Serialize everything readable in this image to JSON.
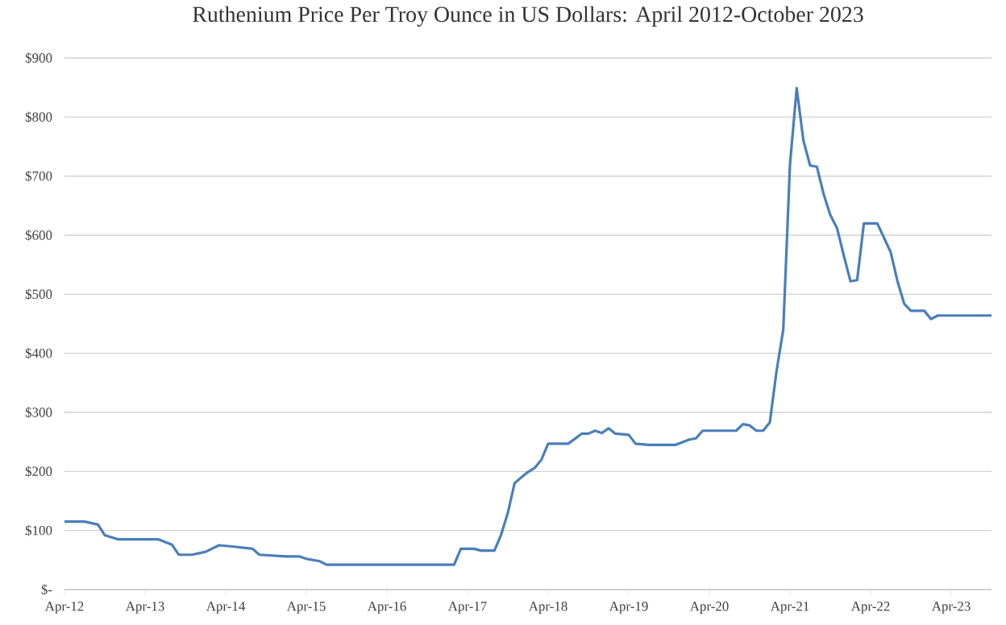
{
  "chart_data": {
    "type": "line",
    "title": "Ruthenium Price Per Troy Ounce in US Dollars: April 2012-October 2023",
    "x": [
      "2012-04",
      "2012-07",
      "2012-09",
      "2012-10",
      "2012-12",
      "2013-06",
      "2013-08",
      "2013-09",
      "2013-11",
      "2014-01",
      "2014-03",
      "2014-05",
      "2014-08",
      "2014-09",
      "2015-01",
      "2015-03",
      "2015-04",
      "2015-06",
      "2015-07",
      "2017-02",
      "2017-03",
      "2017-05",
      "2017-06",
      "2017-08",
      "2017-09",
      "2017-10",
      "2017-11",
      "2017-12",
      "2018-01",
      "2018-02",
      "2018-03",
      "2018-04",
      "2018-07",
      "2018-09",
      "2018-10",
      "2018-11",
      "2018-12",
      "2019-01",
      "2019-02",
      "2019-04",
      "2019-05",
      "2019-07",
      "2019-11",
      "2020-01",
      "2020-02",
      "2020-03",
      "2020-08",
      "2020-09",
      "2020-10",
      "2020-11",
      "2020-12",
      "2021-01",
      "2021-02",
      "2021-03",
      "2021-04",
      "2021-05",
      "2021-06",
      "2021-07",
      "2021-08",
      "2021-09",
      "2021-10",
      "2021-11",
      "2021-12",
      "2022-01",
      "2022-02",
      "2022-03",
      "2022-05",
      "2022-07",
      "2022-08",
      "2022-09",
      "2022-10",
      "2022-12",
      "2023-01",
      "2023-02",
      "2023-10"
    ],
    "series": [
      {
        "color": "#4a7ebb",
        "values": [
          115,
          115,
          110,
          92,
          85,
          85,
          76,
          59,
          59,
          64,
          75,
          73,
          69,
          59,
          56,
          56,
          52,
          48,
          42,
          42,
          69,
          69,
          66,
          66,
          93,
          130,
          180,
          190,
          199,
          206,
          220,
          247,
          247,
          264,
          264,
          269,
          265,
          273,
          264,
          262,
          247,
          245,
          245,
          254,
          256,
          269,
          269,
          280,
          278,
          269,
          269,
          283,
          370,
          440,
          720,
          849,
          760,
          718,
          716,
          670,
          634,
          612,
          566,
          522,
          524,
          620,
          620,
          571,
          522,
          484,
          472,
          472,
          458,
          464,
          464
        ]
      }
    ],
    "xlim": [
      "2012-04",
      "2023-10"
    ],
    "xticks": [
      {
        "value": "2012-04",
        "label": "Apr-12"
      },
      {
        "value": "2013-04",
        "label": "Apr-13"
      },
      {
        "value": "2014-04",
        "label": "Apr-14"
      },
      {
        "value": "2015-04",
        "label": "Apr-15"
      },
      {
        "value": "2016-04",
        "label": "Apr-16"
      },
      {
        "value": "2017-04",
        "label": "Apr-17"
      },
      {
        "value": "2018-04",
        "label": "Apr-18"
      },
      {
        "value": "2019-04",
        "label": "Apr-19"
      },
      {
        "value": "2020-04",
        "label": "Apr-20"
      },
      {
        "value": "2021-04",
        "label": "Apr-21"
      },
      {
        "value": "2022-04",
        "label": "Apr-22"
      },
      {
        "value": "2023-04",
        "label": "Apr-23"
      }
    ],
    "ylim": [
      0,
      900
    ],
    "yticks": [
      {
        "value": 0,
        "label": "$-"
      },
      {
        "value": 100,
        "label": "$100"
      },
      {
        "value": 200,
        "label": "$200"
      },
      {
        "value": 300,
        "label": "$300"
      },
      {
        "value": 400,
        "label": "$400"
      },
      {
        "value": 500,
        "label": "$500"
      },
      {
        "value": 600,
        "label": "$600"
      },
      {
        "value": 700,
        "label": "$700"
      },
      {
        "value": 800,
        "label": "$800"
      },
      {
        "value": 900,
        "label": "$900"
      }
    ],
    "grid": "y",
    "marker": "none",
    "line_style": "solid"
  }
}
